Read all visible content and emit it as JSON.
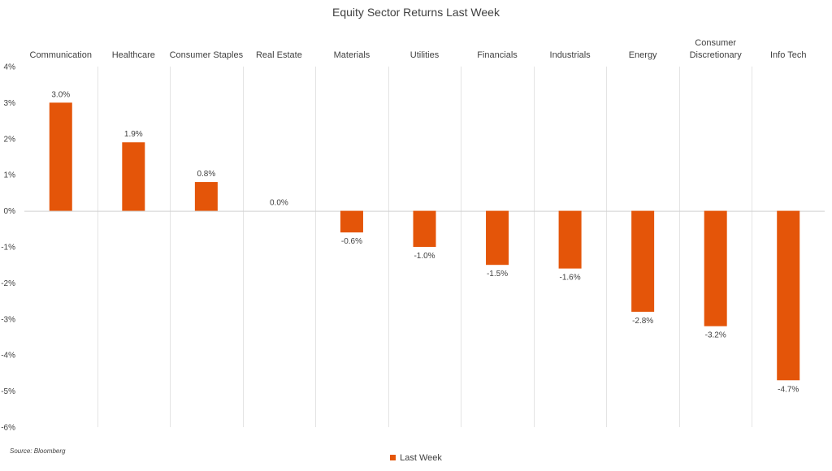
{
  "chart_data": {
    "type": "bar",
    "title": "Equity Sector Returns Last Week",
    "categories": [
      [
        "Communication"
      ],
      [
        "Healthcare"
      ],
      [
        "Consumer Staples"
      ],
      [
        "Real Estate"
      ],
      [
        "Materials"
      ],
      [
        "Utilities"
      ],
      [
        "Financials"
      ],
      [
        "Industrials"
      ],
      [
        "Energy"
      ],
      [
        "Consumer",
        "Discretionary"
      ],
      [
        "Info Tech"
      ]
    ],
    "series": [
      {
        "name": "Last Week",
        "values": [
          3.0,
          1.9,
          0.8,
          0.0,
          -0.6,
          -1.0,
          -1.5,
          -1.6,
          -2.8,
          -3.2,
          -4.7
        ],
        "labels": [
          "3.0%",
          "1.9%",
          "0.8%",
          "0.0%",
          "-0.6%",
          "-1.0%",
          "-1.5%",
          "-1.6%",
          "-2.8%",
          "-3.2%",
          "-4.7%"
        ]
      }
    ],
    "ylim": [
      -6,
      4
    ],
    "yticks": [
      4,
      3,
      2,
      1,
      0,
      -1,
      -2,
      -3,
      -4,
      -5,
      -6
    ],
    "ytick_labels": [
      "4%",
      "3%",
      "2%",
      "1%",
      "0%",
      "-1%",
      "-2%",
      "-3%",
      "-4%",
      "-5%",
      "-6%"
    ],
    "xaxis_position": "top",
    "gridlines": "vertical category separators",
    "legend_position": "bottom",
    "color": "#E45509",
    "source": "Source: Bloomberg"
  }
}
